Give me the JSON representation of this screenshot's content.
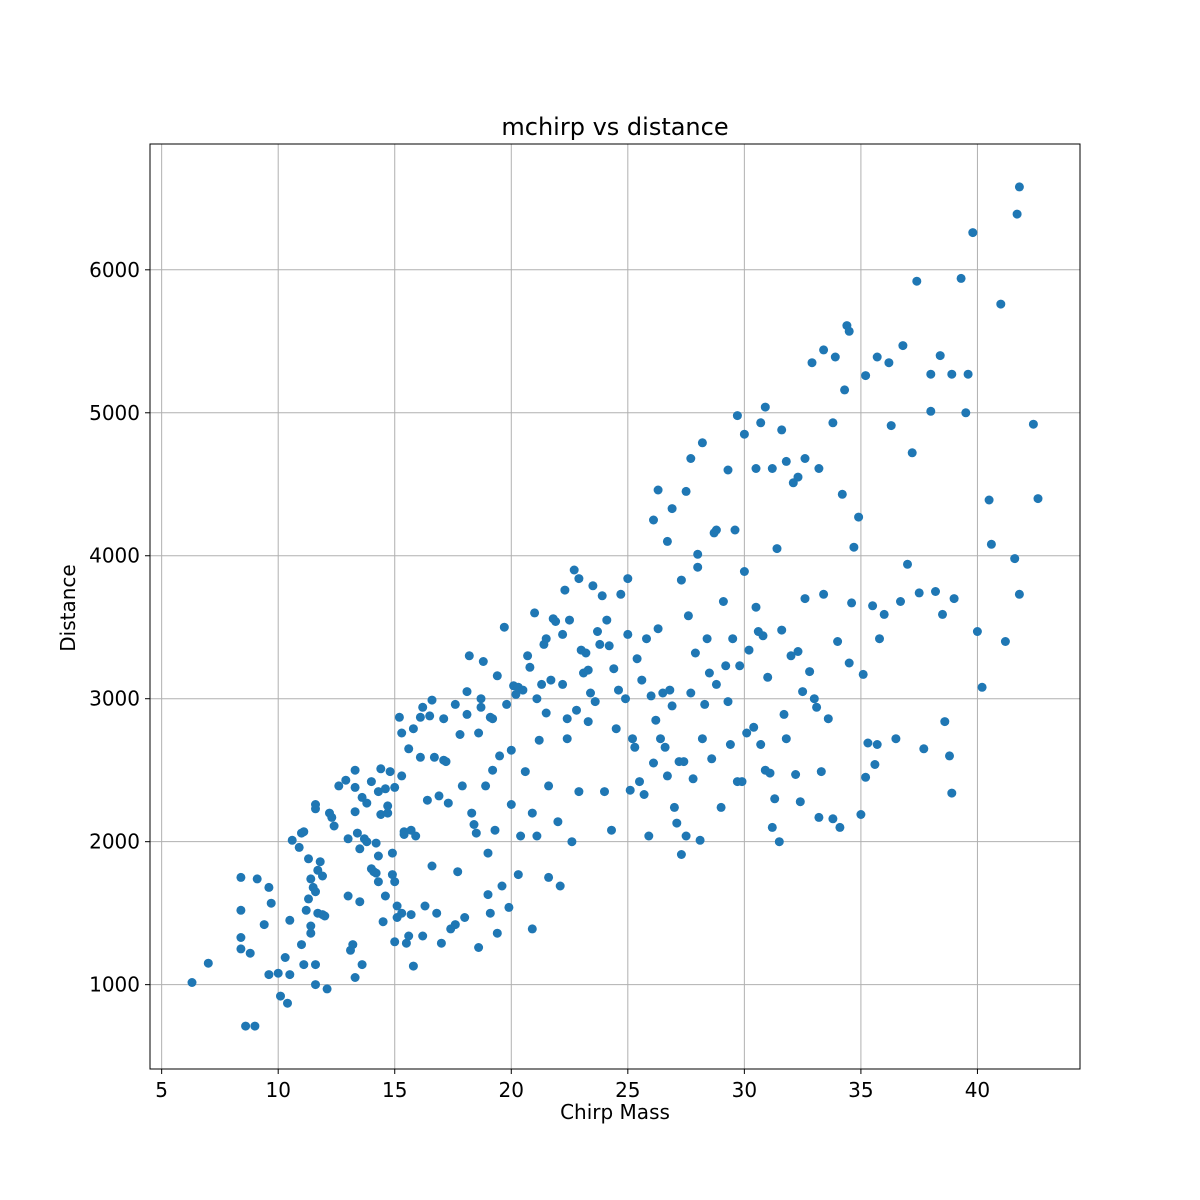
{
  "chart_data": {
    "type": "scatter",
    "title": "mchirp vs distance",
    "xlabel": "Chirp Mass",
    "ylabel": "Distance",
    "xlim": [
      4.5,
      44.4
    ],
    "ylim": [
      410,
      6880
    ],
    "xticks": [
      5,
      10,
      15,
      20,
      25,
      30,
      35,
      40
    ],
    "yticks": [
      1000,
      2000,
      3000,
      4000,
      5000,
      6000
    ],
    "grid": true,
    "legend": "none",
    "marker_color": "#1f77b4",
    "points": [
      [
        6.3,
        1015
      ],
      [
        7.0,
        1150
      ],
      [
        8.4,
        1750
      ],
      [
        8.4,
        1520
      ],
      [
        8.4,
        1330
      ],
      [
        8.4,
        1250
      ],
      [
        8.6,
        710
      ],
      [
        8.8,
        1220
      ],
      [
        9.0,
        710
      ],
      [
        9.1,
        1740
      ],
      [
        9.4,
        1420
      ],
      [
        9.6,
        1070
      ],
      [
        9.6,
        1680
      ],
      [
        9.7,
        1570
      ],
      [
        10.0,
        1080
      ],
      [
        10.1,
        920
      ],
      [
        10.3,
        1190
      ],
      [
        10.4,
        870
      ],
      [
        10.5,
        1450
      ],
      [
        10.5,
        1070
      ],
      [
        10.6,
        2010
      ],
      [
        10.9,
        1960
      ],
      [
        11.0,
        1280
      ],
      [
        11.0,
        2060
      ],
      [
        11.1,
        1140
      ],
      [
        11.1,
        2070
      ],
      [
        11.2,
        1520
      ],
      [
        11.3,
        1600
      ],
      [
        11.3,
        1880
      ],
      [
        11.4,
        1360
      ],
      [
        11.4,
        1410
      ],
      [
        11.4,
        1740
      ],
      [
        11.5,
        1680
      ],
      [
        11.6,
        2260
      ],
      [
        11.6,
        2230
      ],
      [
        11.6,
        1650
      ],
      [
        11.6,
        1140
      ],
      [
        11.6,
        1000
      ],
      [
        11.7,
        1800
      ],
      [
        11.7,
        1500
      ],
      [
        11.8,
        1860
      ],
      [
        11.9,
        1760
      ],
      [
        11.9,
        1490
      ],
      [
        12.0,
        1480
      ],
      [
        12.1,
        970
      ],
      [
        12.2,
        2200
      ],
      [
        12.3,
        2170
      ],
      [
        12.4,
        2110
      ],
      [
        12.6,
        2390
      ],
      [
        12.9,
        2430
      ],
      [
        13.0,
        1620
      ],
      [
        13.0,
        2020
      ],
      [
        13.1,
        1240
      ],
      [
        13.2,
        1280
      ],
      [
        13.3,
        2500
      ],
      [
        13.3,
        2380
      ],
      [
        13.3,
        2210
      ],
      [
        13.3,
        1050
      ],
      [
        13.4,
        2060
      ],
      [
        13.5,
        1950
      ],
      [
        13.5,
        1580
      ],
      [
        13.6,
        2310
      ],
      [
        13.6,
        1140
      ],
      [
        13.7,
        2020
      ],
      [
        13.8,
        2000
      ],
      [
        13.8,
        2270
      ],
      [
        14.0,
        2420
      ],
      [
        14.0,
        1810
      ],
      [
        14.1,
        1790
      ],
      [
        14.2,
        1990
      ],
      [
        14.2,
        1780
      ],
      [
        14.3,
        2350
      ],
      [
        14.3,
        1900
      ],
      [
        14.3,
        1720
      ],
      [
        14.4,
        2510
      ],
      [
        14.4,
        2190
      ],
      [
        14.5,
        1440
      ],
      [
        14.6,
        2370
      ],
      [
        14.6,
        1620
      ],
      [
        14.7,
        2250
      ],
      [
        14.7,
        2200
      ],
      [
        14.8,
        2490
      ],
      [
        14.9,
        1920
      ],
      [
        14.9,
        1770
      ],
      [
        15.0,
        1300
      ],
      [
        15.0,
        1720
      ],
      [
        15.0,
        2380
      ],
      [
        15.1,
        1470
      ],
      [
        15.1,
        1550
      ],
      [
        15.2,
        2870
      ],
      [
        15.3,
        2760
      ],
      [
        15.3,
        2460
      ],
      [
        15.3,
        1500
      ],
      [
        15.4,
        2070
      ],
      [
        15.4,
        2050
      ],
      [
        15.5,
        1290
      ],
      [
        15.6,
        2650
      ],
      [
        15.6,
        1340
      ],
      [
        15.7,
        2080
      ],
      [
        15.7,
        1490
      ],
      [
        15.8,
        2790
      ],
      [
        15.8,
        1130
      ],
      [
        15.9,
        2040
      ],
      [
        16.1,
        2590
      ],
      [
        16.1,
        2870
      ],
      [
        16.2,
        2940
      ],
      [
        16.2,
        1340
      ],
      [
        16.3,
        1550
      ],
      [
        16.4,
        2290
      ],
      [
        16.5,
        2880
      ],
      [
        16.6,
        2990
      ],
      [
        16.6,
        1830
      ],
      [
        16.7,
        2590
      ],
      [
        16.8,
        1500
      ],
      [
        16.9,
        2320
      ],
      [
        17.0,
        1290
      ],
      [
        17.1,
        2860
      ],
      [
        17.1,
        2570
      ],
      [
        17.2,
        2560
      ],
      [
        17.3,
        2270
      ],
      [
        17.4,
        1390
      ],
      [
        17.6,
        2960
      ],
      [
        17.6,
        1420
      ],
      [
        17.7,
        1790
      ],
      [
        17.8,
        2750
      ],
      [
        17.9,
        2390
      ],
      [
        18.0,
        1470
      ],
      [
        18.1,
        2890
      ],
      [
        18.1,
        3050
      ],
      [
        18.2,
        3300
      ],
      [
        18.3,
        2200
      ],
      [
        18.4,
        2120
      ],
      [
        18.5,
        2060
      ],
      [
        18.6,
        2760
      ],
      [
        18.6,
        1260
      ],
      [
        18.7,
        3000
      ],
      [
        18.7,
        2940
      ],
      [
        18.8,
        3260
      ],
      [
        18.9,
        2390
      ],
      [
        19.0,
        1920
      ],
      [
        19.0,
        1630
      ],
      [
        19.1,
        2870
      ],
      [
        19.1,
        1500
      ],
      [
        19.2,
        2860
      ],
      [
        19.2,
        2500
      ],
      [
        19.3,
        2080
      ],
      [
        19.4,
        3160
      ],
      [
        19.4,
        1360
      ],
      [
        19.5,
        2600
      ],
      [
        19.6,
        1690
      ],
      [
        19.7,
        3500
      ],
      [
        19.8,
        2960
      ],
      [
        19.9,
        1540
      ],
      [
        20.0,
        2260
      ],
      [
        20.0,
        2640
      ],
      [
        20.1,
        3090
      ],
      [
        20.2,
        3030
      ],
      [
        20.3,
        3080
      ],
      [
        20.3,
        1770
      ],
      [
        20.4,
        2040
      ],
      [
        20.5,
        3060
      ],
      [
        20.6,
        2490
      ],
      [
        20.7,
        3300
      ],
      [
        20.8,
        3220
      ],
      [
        20.9,
        2200
      ],
      [
        20.9,
        1390
      ],
      [
        21.0,
        3600
      ],
      [
        21.1,
        3000
      ],
      [
        21.1,
        2040
      ],
      [
        21.2,
        2710
      ],
      [
        21.3,
        3100
      ],
      [
        21.4,
        3380
      ],
      [
        21.5,
        3420
      ],
      [
        21.5,
        2900
      ],
      [
        21.6,
        2390
      ],
      [
        21.6,
        1750
      ],
      [
        21.7,
        3130
      ],
      [
        21.8,
        3560
      ],
      [
        21.9,
        3540
      ],
      [
        22.0,
        2140
      ],
      [
        22.1,
        1690
      ],
      [
        22.2,
        3450
      ],
      [
        22.2,
        3100
      ],
      [
        22.3,
        3760
      ],
      [
        22.4,
        2860
      ],
      [
        22.4,
        2720
      ],
      [
        22.5,
        3550
      ],
      [
        22.6,
        2000
      ],
      [
        22.7,
        3900
      ],
      [
        22.8,
        2920
      ],
      [
        22.9,
        2350
      ],
      [
        22.9,
        3840
      ],
      [
        23.0,
        3340
      ],
      [
        23.1,
        3180
      ],
      [
        23.2,
        3320
      ],
      [
        23.3,
        3200
      ],
      [
        23.3,
        2840
      ],
      [
        23.4,
        3040
      ],
      [
        23.5,
        3790
      ],
      [
        23.6,
        2980
      ],
      [
        23.7,
        3470
      ],
      [
        23.8,
        3380
      ],
      [
        23.9,
        3720
      ],
      [
        24.0,
        2350
      ],
      [
        24.1,
        3550
      ],
      [
        24.2,
        3370
      ],
      [
        24.3,
        2080
      ],
      [
        24.4,
        3210
      ],
      [
        24.5,
        2790
      ],
      [
        24.6,
        3060
      ],
      [
        24.7,
        3730
      ],
      [
        24.9,
        3000
      ],
      [
        25.0,
        3450
      ],
      [
        25.0,
        3840
      ],
      [
        25.1,
        2360
      ],
      [
        25.2,
        2720
      ],
      [
        25.3,
        2660
      ],
      [
        25.4,
        3280
      ],
      [
        25.5,
        2420
      ],
      [
        25.6,
        3130
      ],
      [
        25.7,
        2330
      ],
      [
        25.8,
        3420
      ],
      [
        25.9,
        2040
      ],
      [
        26.0,
        3020
      ],
      [
        26.1,
        2550
      ],
      [
        26.2,
        2850
      ],
      [
        26.3,
        3490
      ],
      [
        26.4,
        2720
      ],
      [
        26.5,
        3040
      ],
      [
        26.6,
        2660
      ],
      [
        26.7,
        2460
      ],
      [
        26.8,
        3060
      ],
      [
        26.9,
        2950
      ],
      [
        27.0,
        2240
      ],
      [
        27.1,
        2130
      ],
      [
        27.2,
        2560
      ],
      [
        27.3,
        1910
      ],
      [
        27.4,
        2560
      ],
      [
        27.5,
        2040
      ],
      [
        27.6,
        3580
      ],
      [
        27.7,
        3040
      ],
      [
        27.8,
        2440
      ],
      [
        27.9,
        3320
      ],
      [
        28.0,
        3920
      ],
      [
        28.1,
        2010
      ],
      [
        28.2,
        2720
      ],
      [
        28.3,
        2960
      ],
      [
        28.4,
        3420
      ],
      [
        28.5,
        3180
      ],
      [
        28.6,
        2580
      ],
      [
        28.7,
        4160
      ],
      [
        28.8,
        3100
      ],
      [
        29.0,
        2240
      ],
      [
        29.1,
        3680
      ],
      [
        29.2,
        3230
      ],
      [
        29.3,
        2980
      ],
      [
        29.4,
        2680
      ],
      [
        29.5,
        3420
      ],
      [
        29.6,
        4180
      ],
      [
        29.7,
        2420
      ],
      [
        29.8,
        3230
      ],
      [
        29.9,
        2420
      ],
      [
        30.0,
        3890
      ],
      [
        30.1,
        2760
      ],
      [
        30.2,
        3340
      ],
      [
        30.4,
        2800
      ],
      [
        30.5,
        3640
      ],
      [
        30.6,
        3470
      ],
      [
        30.7,
        2680
      ],
      [
        30.8,
        3440
      ],
      [
        30.9,
        2500
      ],
      [
        31.0,
        3150
      ],
      [
        31.1,
        2480
      ],
      [
        31.2,
        2100
      ],
      [
        31.3,
        2300
      ],
      [
        31.4,
        4050
      ],
      [
        31.5,
        2000
      ],
      [
        31.6,
        3480
      ],
      [
        31.7,
        2890
      ],
      [
        31.8,
        2720
      ],
      [
        32.0,
        3300
      ],
      [
        32.2,
        2470
      ],
      [
        32.3,
        3330
      ],
      [
        32.4,
        2280
      ],
      [
        32.5,
        3050
      ],
      [
        32.6,
        3700
      ],
      [
        32.8,
        3190
      ],
      [
        33.0,
        3000
      ],
      [
        33.1,
        2940
      ],
      [
        33.2,
        2170
      ],
      [
        33.3,
        2490
      ],
      [
        33.4,
        3730
      ],
      [
        33.6,
        2860
      ],
      [
        33.8,
        2160
      ],
      [
        34.0,
        3400
      ],
      [
        34.1,
        2100
      ],
      [
        34.2,
        4430
      ],
      [
        34.5,
        3250
      ],
      [
        34.6,
        3670
      ],
      [
        34.7,
        4060
      ],
      [
        34.9,
        4270
      ],
      [
        35.0,
        2190
      ],
      [
        35.1,
        3170
      ],
      [
        35.2,
        2450
      ],
      [
        35.3,
        2690
      ],
      [
        35.5,
        3650
      ],
      [
        35.6,
        2540
      ],
      [
        35.7,
        2680
      ],
      [
        35.8,
        3420
      ],
      [
        36.0,
        3590
      ],
      [
        36.3,
        4910
      ],
      [
        36.5,
        2720
      ],
      [
        36.7,
        3680
      ],
      [
        37.0,
        3940
      ],
      [
        37.2,
        4720
      ],
      [
        37.5,
        3740
      ],
      [
        37.7,
        2650
      ],
      [
        38.0,
        5010
      ],
      [
        38.2,
        3750
      ],
      [
        38.5,
        3590
      ],
      [
        38.6,
        2840
      ],
      [
        38.8,
        2600
      ],
      [
        38.9,
        2340
      ],
      [
        39.0,
        3700
      ],
      [
        39.3,
        5940
      ],
      [
        39.5,
        5000
      ],
      [
        39.8,
        6260
      ],
      [
        40.0,
        3470
      ],
      [
        40.2,
        3080
      ],
      [
        40.5,
        4390
      ],
      [
        40.6,
        4080
      ],
      [
        41.0,
        5760
      ],
      [
        41.2,
        3400
      ],
      [
        41.6,
        3980
      ],
      [
        41.7,
        6390
      ],
      [
        41.8,
        6580
      ],
      [
        41.8,
        3730
      ],
      [
        42.4,
        4920
      ],
      [
        42.6,
        4400
      ],
      [
        30.9,
        5040
      ],
      [
        31.6,
        4880
      ],
      [
        32.1,
        4510
      ],
      [
        32.6,
        4680
      ],
      [
        33.2,
        4610
      ],
      [
        33.8,
        4930
      ],
      [
        34.4,
        5610
      ],
      [
        34.5,
        5570
      ],
      [
        35.2,
        5260
      ],
      [
        35.7,
        5390
      ],
      [
        36.2,
        5350
      ],
      [
        36.8,
        5470
      ],
      [
        37.4,
        5920
      ],
      [
        38.0,
        5270
      ],
      [
        38.4,
        5400
      ],
      [
        38.9,
        5270
      ],
      [
        39.6,
        5270
      ],
      [
        29.7,
        4980
      ],
      [
        30.0,
        4850
      ],
      [
        30.5,
        4610
      ],
      [
        30.7,
        4930
      ],
      [
        31.2,
        4610
      ],
      [
        31.8,
        4660
      ],
      [
        32.3,
        4550
      ],
      [
        32.9,
        5350
      ],
      [
        33.4,
        5440
      ],
      [
        33.9,
        5390
      ],
      [
        34.3,
        5160
      ],
      [
        26.3,
        4460
      ],
      [
        26.9,
        4330
      ],
      [
        27.5,
        4450
      ],
      [
        28.2,
        4790
      ],
      [
        28.8,
        4180
      ],
      [
        27.7,
        4680
      ],
      [
        29.3,
        4600
      ],
      [
        28.0,
        4010
      ],
      [
        27.3,
        3830
      ],
      [
        26.7,
        4100
      ],
      [
        26.1,
        4250
      ]
    ]
  }
}
